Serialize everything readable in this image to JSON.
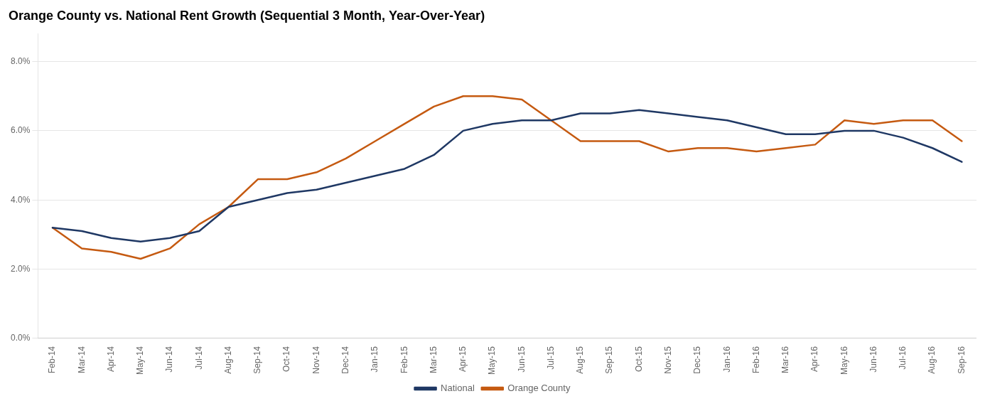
{
  "chart_data": {
    "type": "line",
    "title": "Orange County vs. National Rent Growth (Sequential 3 Month, Year-Over-Year)",
    "categories": [
      "Feb-14",
      "Mar-14",
      "Apr-14",
      "May-14",
      "Jun-14",
      "Jul-14",
      "Aug-14",
      "Sep-14",
      "Oct-14",
      "Nov-14",
      "Dec-14",
      "Jan-15",
      "Feb-15",
      "Mar-15",
      "Apr-15",
      "May-15",
      "Jun-15",
      "Jul-15",
      "Aug-15",
      "Sep-15",
      "Oct-15",
      "Nov-15",
      "Dec-15",
      "Jan-16",
      "Feb-16",
      "Mar-16",
      "Apr-16",
      "May-16",
      "Jun-16",
      "Jul-16",
      "Aug-16",
      "Sep-16"
    ],
    "series": [
      {
        "name": "National",
        "color": "#1F3864",
        "values": [
          0.032,
          0.031,
          0.029,
          0.028,
          0.029,
          0.031,
          0.038,
          0.04,
          0.042,
          0.043,
          0.045,
          0.047,
          0.049,
          0.053,
          0.06,
          0.062,
          0.063,
          0.063,
          0.065,
          0.065,
          0.066,
          0.065,
          0.064,
          0.063,
          0.061,
          0.059,
          0.059,
          0.06,
          0.06,
          0.058,
          0.055,
          0.051
        ]
      },
      {
        "name": "Orange County",
        "color": "#C55A11",
        "values": [
          0.032,
          0.026,
          0.025,
          0.023,
          0.026,
          0.033,
          0.038,
          0.046,
          0.046,
          0.048,
          0.052,
          0.057,
          0.062,
          0.067,
          0.07,
          0.07,
          0.069,
          0.063,
          0.057,
          0.057,
          0.057,
          0.054,
          0.055,
          0.055,
          0.054,
          0.055,
          0.056,
          0.063,
          0.062,
          0.063,
          0.063,
          0.057
        ]
      }
    ],
    "ylim": [
      0.0,
      0.088
    ],
    "yticks": [
      {
        "value": 0.0,
        "label": "0.0%"
      },
      {
        "value": 0.02,
        "label": "2.0%"
      },
      {
        "value": 0.04,
        "label": "4.0%"
      },
      {
        "value": 0.06,
        "label": "6.0%"
      },
      {
        "value": 0.08,
        "label": "8.0%"
      }
    ],
    "grid": true,
    "legend": "bottom"
  }
}
